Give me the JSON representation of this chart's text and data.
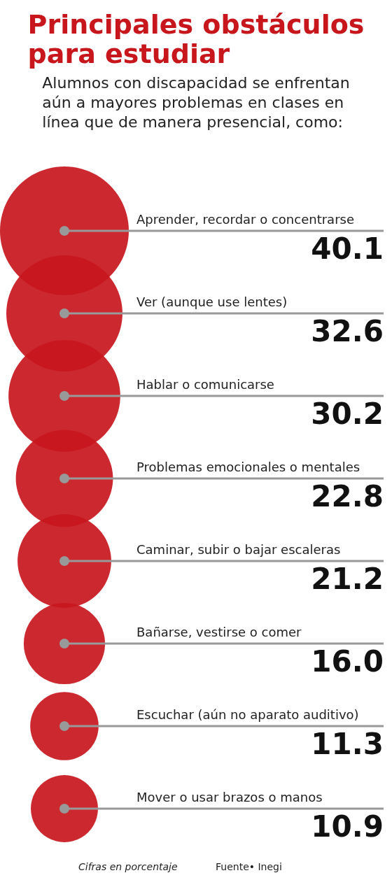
{
  "chart_data": {
    "type": "other",
    "title": "Principales obstáculos\npara estudiar",
    "subtitle": "Alumnos con discapacidad se enfrentan\naún a mayores problemas en clases en\nlínea que de manera presencial, como:",
    "categories": [
      "Aprender, recordar o concentrarse",
      "Ver (aunque use lentes)",
      "Hablar o comunicarse",
      "Problemas emocionales o mentales",
      "Caminar, subir o bajar escaleras",
      "Bañarse, vestirse o comer",
      "Escuchar (aún no aparato auditivo)",
      "Mover o usar brazos o manos"
    ],
    "values": [
      40.1,
      32.6,
      30.2,
      22.8,
      21.2,
      16.0,
      11.3,
      10.9
    ],
    "value_labels": [
      "40.1",
      "32.6",
      "30.2",
      "22.8",
      "21.2",
      "16.0",
      "11.3",
      "10.9"
    ],
    "color": "#c8161d",
    "annotations": [
      "Cifras en porcentaje",
      "Fuente• Inegi"
    ]
  }
}
